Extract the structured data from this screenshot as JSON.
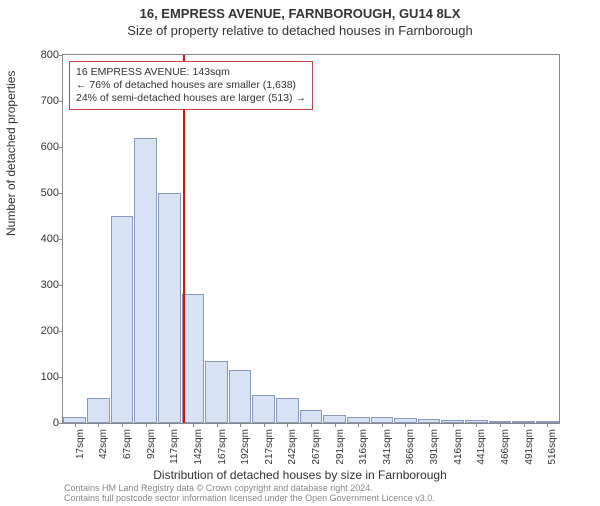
{
  "title_main": "16, EMPRESS AVENUE, FARNBOROUGH, GU14 8LX",
  "title_sub": "Size of property relative to detached houses in Farnborough",
  "y_axis_label": "Number of detached properties",
  "x_axis_label": "Distribution of detached houses by size in Farnborough",
  "footer_line1": "Contains HM Land Registry data © Crown copyright and database right 2024.",
  "footer_line2": "Contains full postcode sector information licensed under the Open Government Licence v3.0.",
  "chart": {
    "type": "bar",
    "ylim": [
      0,
      800
    ],
    "yticks": [
      0,
      100,
      200,
      300,
      400,
      500,
      600,
      700,
      800
    ],
    "xticks": [
      "17sqm",
      "42sqm",
      "67sqm",
      "92sqm",
      "117sqm",
      "142sqm",
      "167sqm",
      "192sqm",
      "217sqm",
      "242sqm",
      "267sqm",
      "291sqm",
      "316sqm",
      "341sqm",
      "366sqm",
      "391sqm",
      "416sqm",
      "441sqm",
      "466sqm",
      "491sqm",
      "516sqm"
    ],
    "values": [
      12,
      55,
      450,
      620,
      500,
      280,
      135,
      115,
      60,
      55,
      28,
      18,
      12,
      12,
      10,
      8,
      6,
      6,
      4,
      4,
      3
    ],
    "bar_fill": "#d7e3f4",
    "bar_border": "#8899bb",
    "background": "#ffffff",
    "axis_color": "#888888",
    "ref_line_x_index": 5,
    "ref_line_color": "#ff0000",
    "font_family": "Arial",
    "label_fontsize": 12,
    "tick_fontsize": 11
  },
  "annotation": {
    "lines": [
      "16 EMPRESS AVENUE: 143sqm",
      "← 76% of detached houses are smaller (1,638)",
      "24% of semi-detached houses are larger (513) →"
    ],
    "border_color": "#cc4444",
    "background": "#ffffff",
    "fontsize": 10.5
  }
}
